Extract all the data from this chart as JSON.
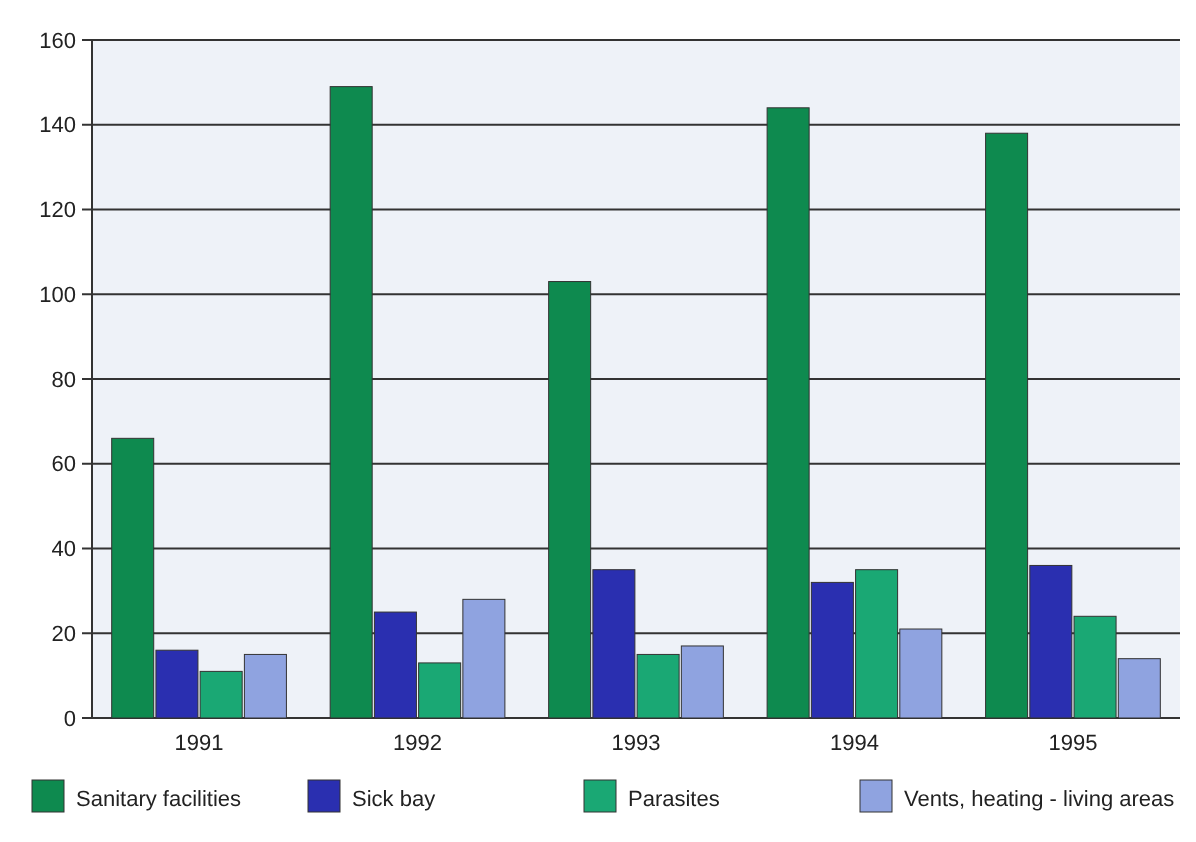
{
  "chart_data": {
    "type": "bar",
    "categories": [
      "1991",
      "1992",
      "1993",
      "1994",
      "1995"
    ],
    "series": [
      {
        "name": "Sanitary facilities",
        "color": "#0e8a4f",
        "values": [
          66,
          149,
          103,
          144,
          138
        ]
      },
      {
        "name": "Sick bay",
        "color": "#2a2fb0",
        "values": [
          16,
          25,
          35,
          32,
          36
        ]
      },
      {
        "name": "Parasites",
        "color": "#1aa874",
        "values": [
          11,
          13,
          15,
          35,
          24
        ]
      },
      {
        "name": "Vents, heating - living areas",
        "color": "#8fa3e0",
        "values": [
          15,
          28,
          17,
          21,
          14
        ]
      }
    ],
    "ylim": [
      0,
      160
    ],
    "yticks": [
      0,
      20,
      40,
      60,
      80,
      100,
      120,
      140,
      160
    ],
    "grid": "y",
    "legend": "bottom"
  }
}
